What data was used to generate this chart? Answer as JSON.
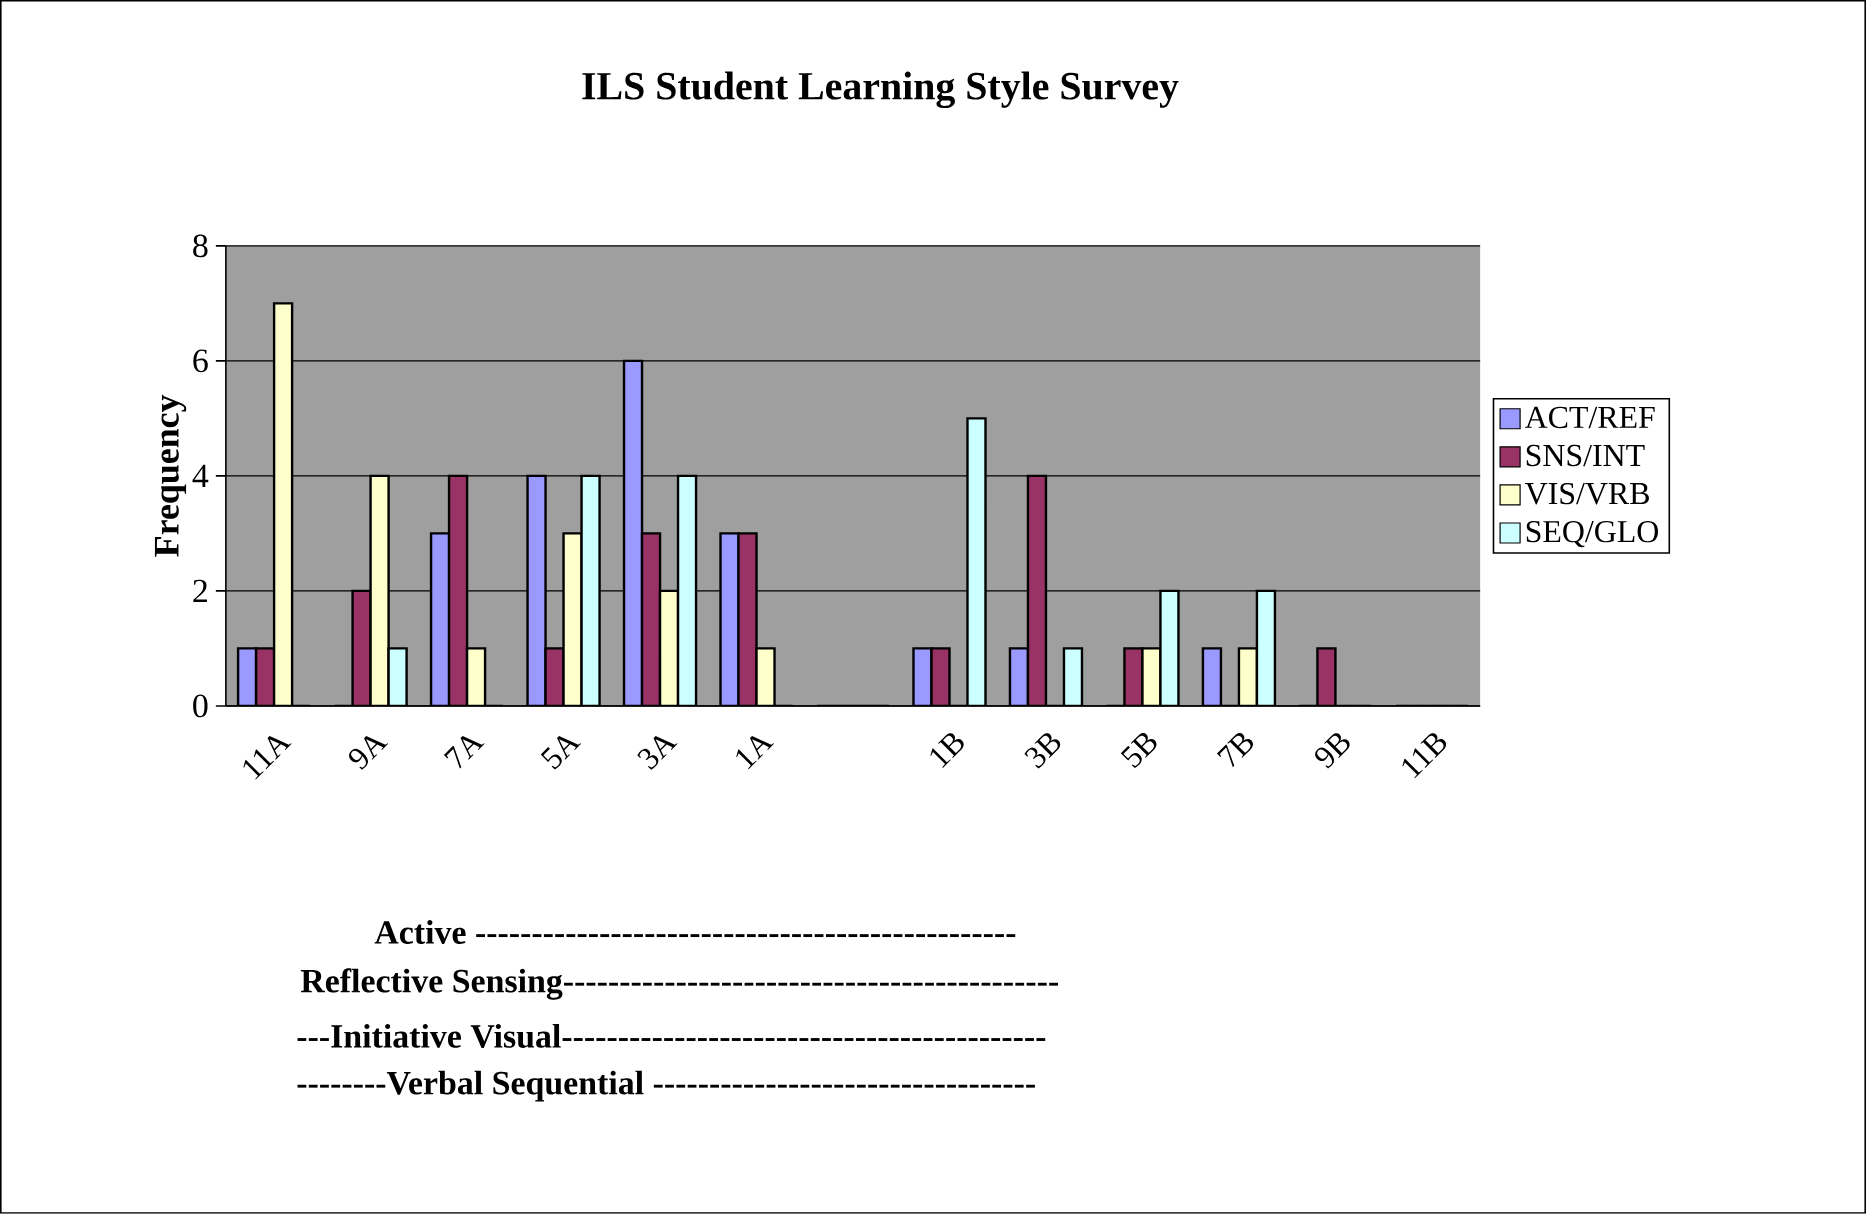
{
  "chart_data": {
    "type": "bar",
    "title": "ILS Student Learning Style Survey",
    "ylabel": "Frequency",
    "categories": [
      "11A",
      "9A",
      "7A",
      "5A",
      "3A",
      "1A",
      null,
      "1B",
      "3B",
      "5B",
      "7B",
      "9B",
      "11B"
    ],
    "series": [
      {
        "name": "ACT/REF",
        "color": "#9999ff",
        "values": [
          1,
          0,
          3,
          4,
          6,
          3,
          0,
          1,
          1,
          0,
          1,
          0,
          0
        ]
      },
      {
        "name": "SNS/INT",
        "color": "#993366",
        "values": [
          1,
          2,
          4,
          1,
          3,
          3,
          0,
          1,
          4,
          1,
          0,
          1,
          0
        ]
      },
      {
        "name": "VIS/VRB",
        "color": "#ffffcc",
        "values": [
          7,
          4,
          1,
          3,
          2,
          1,
          0,
          0,
          0,
          1,
          1,
          0,
          0
        ]
      },
      {
        "name": "SEQ/GLO",
        "color": "#ccffff",
        "values": [
          0,
          1,
          0,
          4,
          4,
          0,
          0,
          5,
          1,
          2,
          2,
          0,
          0
        ]
      }
    ],
    "ylim": [
      0,
      8
    ],
    "yticks": [
      0,
      2,
      4,
      6,
      8
    ],
    "grid": "y",
    "legend": "right",
    "annotations": [
      "Active ------------------------------------------------",
      "Reflective  Sensing--------------------------------------------",
      "---Initiative  Visual-------------------------------------------",
      "--------Verbal   Sequential ----------------------------------"
    ]
  }
}
